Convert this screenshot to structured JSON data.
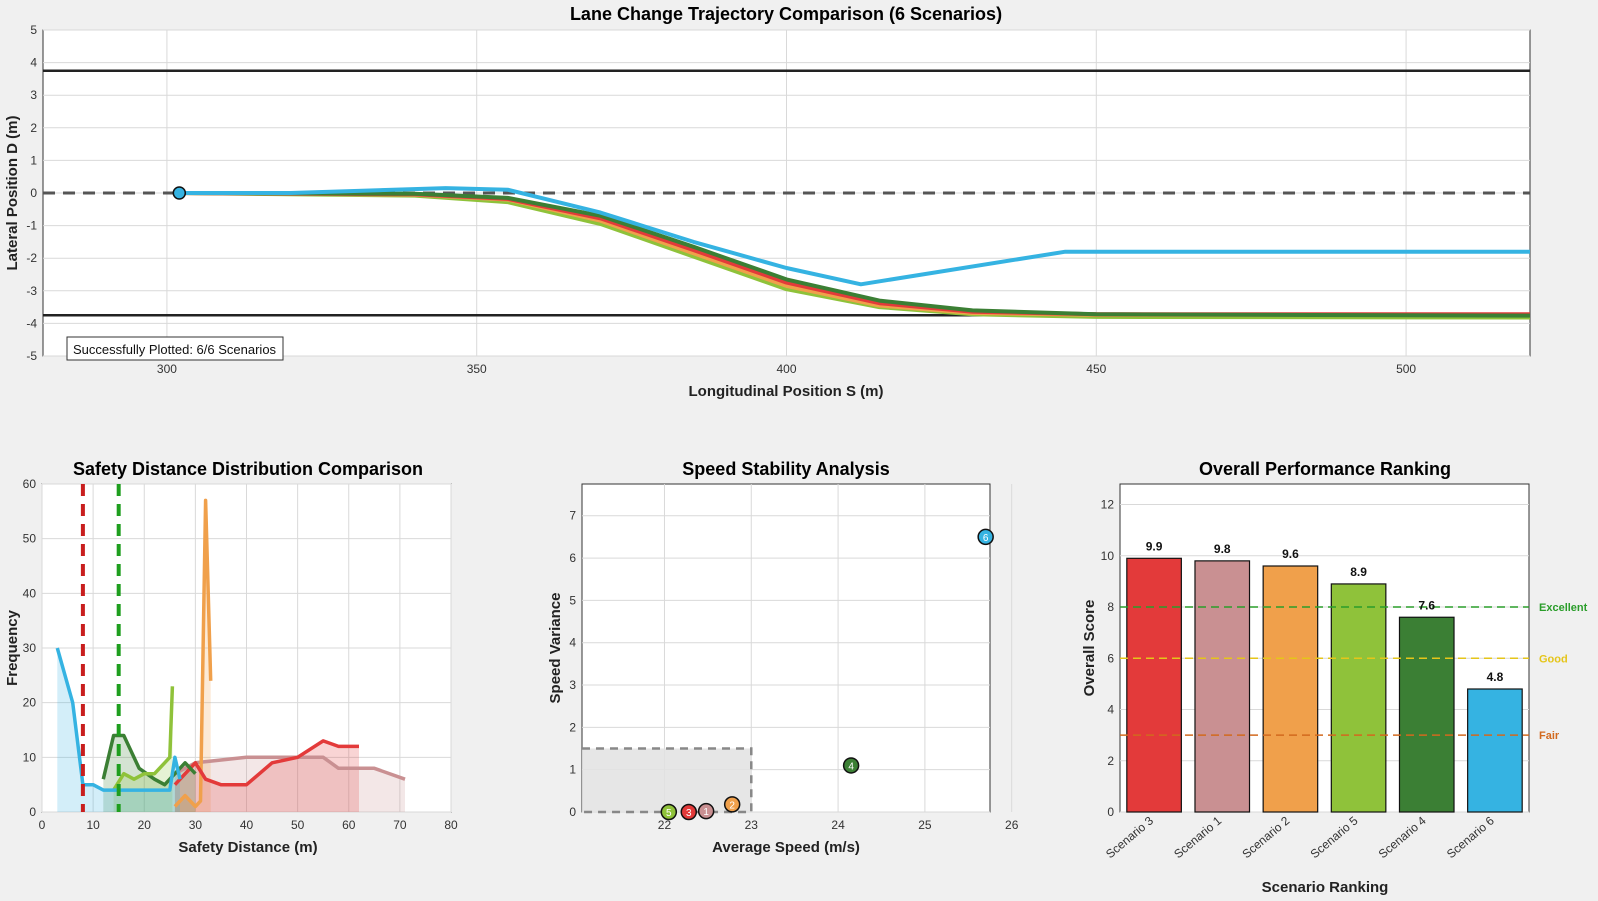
{
  "colors": {
    "s1": "#c99092",
    "s2": "#f0a04b",
    "s3": "#e33a3a",
    "s4": "#3b7f34",
    "s5": "#8fc23a",
    "s6": "#35b3e2",
    "excellent": "#2a9d2a",
    "good": "#e5c51a",
    "fair": "#d2691e",
    "lane": "#222222"
  },
  "chart_data": [
    {
      "type": "line",
      "title": "Lane Change Trajectory Comparison (6 Scenarios)",
      "xlabel": "Longitudinal Position S (m)",
      "ylabel": "Lateral Position D (m)",
      "xlim": [
        280,
        520
      ],
      "ylim": [
        -5,
        5
      ],
      "xticks": [
        "300",
        "350",
        "400",
        "450",
        "500"
      ],
      "yticks": [
        "-5",
        "-4",
        "-3",
        "-2",
        "-1",
        "0",
        "1",
        "2",
        "3",
        "4",
        "5"
      ],
      "lane_lines": [
        3.75,
        -3.75
      ],
      "center_line": 0,
      "start_point": [
        302,
        0
      ],
      "annotation": "Successfully Plotted: 6/6 Scenarios",
      "series": [
        {
          "name": "Scenario 1",
          "color_key": "s1",
          "points": [
            [
              302,
              0
            ],
            [
              340,
              -0.05
            ],
            [
              355,
              -0.2
            ],
            [
              370,
              -0.8
            ],
            [
              385,
              -1.8
            ],
            [
              400,
              -2.8
            ],
            [
              415,
              -3.4
            ],
            [
              430,
              -3.65
            ],
            [
              450,
              -3.72
            ],
            [
              520,
              -3.75
            ]
          ]
        },
        {
          "name": "Scenario 2",
          "color_key": "s2",
          "points": [
            [
              302,
              0
            ],
            [
              340,
              -0.05
            ],
            [
              355,
              -0.2
            ],
            [
              370,
              -0.85
            ],
            [
              385,
              -1.85
            ],
            [
              400,
              -2.85
            ],
            [
              415,
              -3.45
            ],
            [
              430,
              -3.68
            ],
            [
              450,
              -3.74
            ],
            [
              520,
              -3.75
            ]
          ]
        },
        {
          "name": "Scenario 3",
          "color_key": "s3",
          "points": [
            [
              302,
              0
            ],
            [
              340,
              -0.04
            ],
            [
              355,
              -0.18
            ],
            [
              370,
              -0.78
            ],
            [
              385,
              -1.75
            ],
            [
              400,
              -2.75
            ],
            [
              415,
              -3.38
            ],
            [
              430,
              -3.64
            ],
            [
              450,
              -3.72
            ],
            [
              520,
              -3.72
            ]
          ]
        },
        {
          "name": "Scenario 4",
          "color_key": "s4",
          "points": [
            [
              302,
              0
            ],
            [
              340,
              -0.02
            ],
            [
              355,
              -0.15
            ],
            [
              370,
              -0.7
            ],
            [
              385,
              -1.65
            ],
            [
              400,
              -2.65
            ],
            [
              415,
              -3.3
            ],
            [
              430,
              -3.6
            ],
            [
              450,
              -3.72
            ],
            [
              520,
              -3.76
            ]
          ]
        },
        {
          "name": "Scenario 5",
          "color_key": "s5",
          "points": [
            [
              302,
              0
            ],
            [
              340,
              -0.08
            ],
            [
              355,
              -0.28
            ],
            [
              370,
              -0.95
            ],
            [
              385,
              -1.95
            ],
            [
              400,
              -2.95
            ],
            [
              415,
              -3.5
            ],
            [
              430,
              -3.72
            ],
            [
              450,
              -3.8
            ],
            [
              520,
              -3.82
            ]
          ]
        },
        {
          "name": "Scenario 6",
          "color_key": "s6",
          "points": [
            [
              302,
              0
            ],
            [
              320,
              0
            ],
            [
              345,
              0.15
            ],
            [
              355,
              0.1
            ],
            [
              370,
              -0.6
            ],
            [
              385,
              -1.5
            ],
            [
              400,
              -2.3
            ],
            [
              412,
              -2.8
            ],
            [
              445,
              -1.8
            ],
            [
              520,
              -1.8
            ]
          ]
        }
      ]
    },
    {
      "type": "area",
      "title": "Safety Distance Distribution Comparison",
      "xlabel": "Safety Distance (m)",
      "ylabel": "Frequency",
      "xlim": [
        0,
        80
      ],
      "ylim": [
        0,
        60
      ],
      "xticks": [
        "0",
        "10",
        "20",
        "30",
        "40",
        "50",
        "60",
        "70",
        "80"
      ],
      "yticks": [
        "0",
        "10",
        "20",
        "30",
        "40",
        "50",
        "60"
      ],
      "threshold_lines": [
        {
          "x": 8,
          "color": "#c81e1e"
        },
        {
          "x": 15,
          "color": "#1e9e1e"
        }
      ],
      "series": [
        {
          "name": "Scenario 1",
          "color_key": "s1",
          "points": [
            [
              26,
              7
            ],
            [
              30,
              9
            ],
            [
              40,
              10
            ],
            [
              55,
              10
            ],
            [
              58,
              8
            ],
            [
              65,
              8
            ],
            [
              71,
              6
            ]
          ]
        },
        {
          "name": "Scenario 2",
          "color_key": "s2",
          "points": [
            [
              26,
              1
            ],
            [
              28,
              3
            ],
            [
              30,
              1
            ],
            [
              31,
              2
            ],
            [
              32,
              57
            ],
            [
              33,
              24
            ]
          ]
        },
        {
          "name": "Scenario 3",
          "color_key": "s3",
          "points": [
            [
              26,
              5
            ],
            [
              30,
              9
            ],
            [
              32,
              6
            ],
            [
              35,
              5
            ],
            [
              40,
              5
            ],
            [
              45,
              9
            ],
            [
              50,
              10
            ],
            [
              55,
              13
            ],
            [
              58,
              12
            ],
            [
              62,
              12
            ]
          ]
        },
        {
          "name": "Scenario 4",
          "color_key": "s4",
          "points": [
            [
              12,
              6
            ],
            [
              14,
              14
            ],
            [
              16,
              14
            ],
            [
              19,
              8
            ],
            [
              22,
              6
            ],
            [
              24,
              5
            ],
            [
              26,
              7
            ],
            [
              28,
              9
            ],
            [
              30,
              7
            ]
          ]
        },
        {
          "name": "Scenario 5",
          "color_key": "s5",
          "points": [
            [
              14,
              4
            ],
            [
              16,
              7
            ],
            [
              18,
              6
            ],
            [
              20,
              7
            ],
            [
              22,
              7
            ],
            [
              24,
              9
            ],
            [
              25,
              10
            ],
            [
              25.5,
              23
            ]
          ]
        },
        {
          "name": "Scenario 6",
          "color_key": "s6",
          "points": [
            [
              3,
              30
            ],
            [
              6,
              20
            ],
            [
              8,
              5
            ],
            [
              10,
              5
            ],
            [
              12,
              4
            ],
            [
              20,
              4
            ],
            [
              25,
              4
            ],
            [
              26,
              10
            ],
            [
              27,
              6
            ]
          ]
        }
      ]
    },
    {
      "type": "scatter",
      "title": "Speed Stability Analysis",
      "xlabel": "Average Speed (m/s)",
      "ylabel": "Speed Variance",
      "xlim": [
        21.05,
        25.75
      ],
      "ylim": [
        0,
        7.75
      ],
      "xticks": [
        "22",
        "23",
        "24",
        "25",
        "26"
      ],
      "yticks": [
        "0",
        "1",
        "2",
        "3",
        "4",
        "5",
        "6",
        "7"
      ],
      "stable_region": {
        "x": [
          21.05,
          23
        ],
        "y": [
          0,
          1.5
        ]
      },
      "points": [
        {
          "label": "1",
          "color_key": "s1",
          "x": 22.48,
          "y": 0.02
        },
        {
          "label": "2",
          "color_key": "s2",
          "x": 22.78,
          "y": 0.18
        },
        {
          "label": "3",
          "color_key": "s3",
          "x": 22.28,
          "y": 0.0
        },
        {
          "label": "4",
          "color_key": "s4",
          "x": 24.15,
          "y": 1.1
        },
        {
          "label": "5",
          "color_key": "s5",
          "x": 22.05,
          "y": 0.0
        },
        {
          "label": "6",
          "color_key": "s6",
          "x": 25.7,
          "y": 6.5
        }
      ]
    },
    {
      "type": "bar",
      "title": "Overall Performance Ranking",
      "xlabel": "Scenario Ranking",
      "ylabel": "Overall Score",
      "ylim": [
        0,
        12.8
      ],
      "yticks": [
        "0",
        "2",
        "4",
        "6",
        "8",
        "10",
        "12"
      ],
      "categories": [
        "Scenario 3",
        "Scenario 1",
        "Scenario 2",
        "Scenario 5",
        "Scenario 4",
        "Scenario 6"
      ],
      "values": [
        9.9,
        9.8,
        9.6,
        8.9,
        7.6,
        4.8
      ],
      "value_labels": [
        "9.9",
        "9.8",
        "9.6",
        "8.9",
        "7.6",
        "4.8"
      ],
      "color_keys": [
        "s3",
        "s1",
        "s2",
        "s5",
        "s4",
        "s6"
      ],
      "reference_lines": [
        {
          "label": "Excellent",
          "y": 8,
          "color_key": "excellent"
        },
        {
          "label": "Good",
          "y": 6,
          "color_key": "good"
        },
        {
          "label": "Fair",
          "y": 3,
          "color_key": "fair"
        }
      ]
    }
  ]
}
